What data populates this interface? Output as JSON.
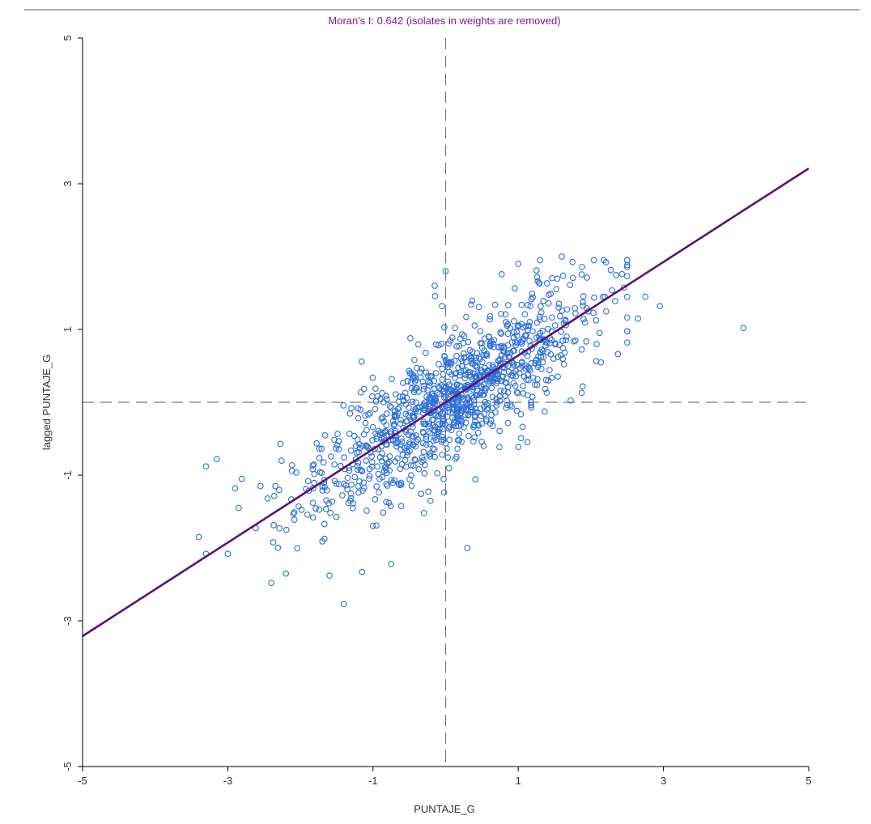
{
  "colors": {
    "title": "#7b1f8a",
    "regression": "#5b1370",
    "points": "#2f6fd6",
    "axis": "#000000",
    "dashed": "#777777",
    "text": "#333333"
  },
  "chart_data": {
    "type": "scatter",
    "title": "Moran's I: 0.642 (isolates in weights are removed)",
    "xlabel": "PUNTAJE_G",
    "ylabel": "lagged PUNTAJE_G",
    "xlim": [
      -5,
      5
    ],
    "ylim": [
      -5,
      5
    ],
    "xticks": [
      -5,
      -3,
      -1,
      1,
      3,
      5
    ],
    "yticks": [
      -5,
      -3,
      -1,
      1,
      3,
      5
    ],
    "xtick_labels": [
      "-5",
      "-3",
      "-1",
      "1",
      "3",
      "5"
    ],
    "ytick_labels": [
      "-5",
      "-3",
      "-1",
      "1",
      "3",
      "5"
    ],
    "reference_lines": {
      "x": 0,
      "y": 0,
      "style": "dashed"
    },
    "regression_line": {
      "slope": 0.642,
      "intercept": 0.0
    },
    "outliers": [
      {
        "x": -3.4,
        "y": -1.85
      },
      {
        "x": -3.3,
        "y": -0.88
      },
      {
        "x": -3.15,
        "y": -0.78
      },
      {
        "x": -3.3,
        "y": -2.08
      },
      {
        "x": -3.0,
        "y": -2.08
      },
      {
        "x": -2.9,
        "y": -1.18
      },
      {
        "x": -2.85,
        "y": -1.45
      },
      {
        "x": -2.55,
        "y": -1.15
      },
      {
        "x": -2.4,
        "y": -2.48
      },
      {
        "x": -2.2,
        "y": -2.35
      },
      {
        "x": -1.6,
        "y": -2.38
      },
      {
        "x": -1.4,
        "y": -2.77
      },
      {
        "x": -1.15,
        "y": -2.33
      },
      {
        "x": -0.75,
        "y": -2.22
      },
      {
        "x": -0.15,
        "y": 1.6
      },
      {
        "x": -0.05,
        "y": 1.32
      },
      {
        "x": 0.0,
        "y": 1.8
      },
      {
        "x": 0.3,
        "y": -2.0
      },
      {
        "x": 1.0,
        "y": 1.9
      },
      {
        "x": 1.6,
        "y": 2.0
      },
      {
        "x": 2.5,
        "y": 0.82
      },
      {
        "x": 2.65,
        "y": 1.15
      },
      {
        "x": 2.75,
        "y": 1.45
      },
      {
        "x": 2.95,
        "y": 1.32
      },
      {
        "x": 4.1,
        "y": 1.02
      }
    ],
    "cloud": {
      "count": 1100,
      "x_mean": 0.1,
      "x_sd": 0.95,
      "noise_sd": 0.42,
      "seed": 17
    }
  }
}
